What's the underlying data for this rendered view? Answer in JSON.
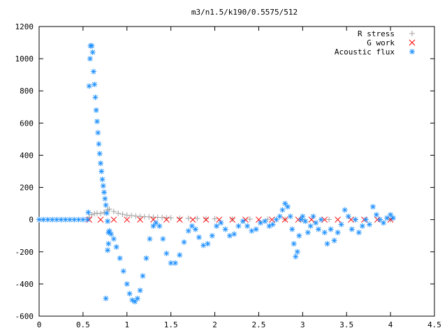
{
  "chart_data": {
    "type": "scatter",
    "title": "m3/n1.5/k190/0.5575/512",
    "xlabel": "",
    "ylabel": "",
    "xlim": [
      0,
      4.5
    ],
    "ylim": [
      -600,
      1200
    ],
    "xticks": [
      0,
      0.5,
      1,
      1.5,
      2,
      2.5,
      3,
      3.5,
      4,
      4.5
    ],
    "xtick_labels": [
      "0",
      "0.5",
      "1",
      "1.5",
      "2",
      "2.5",
      "3",
      "3.5",
      "4",
      "4.5"
    ],
    "yticks": [
      -600,
      -400,
      -200,
      0,
      200,
      400,
      600,
      800,
      1000,
      1200
    ],
    "ytick_labels": [
      "-600",
      "-400",
      "-200",
      "0",
      "200",
      "400",
      "600",
      "800",
      "1000",
      "1200"
    ],
    "grid": false,
    "legend_position": "top-right",
    "series": [
      {
        "name": "R stress",
        "marker": "plus",
        "color": "#a0a0a0",
        "points": [
          [
            0.57,
            15
          ],
          [
            0.6,
            30
          ],
          [
            0.63,
            38
          ],
          [
            0.66,
            40
          ],
          [
            0.7,
            38
          ],
          [
            0.74,
            45
          ],
          [
            0.78,
            60
          ],
          [
            0.8,
            65
          ],
          [
            0.85,
            50
          ],
          [
            0.9,
            40
          ],
          [
            0.95,
            33
          ],
          [
            1.0,
            28
          ],
          [
            1.05,
            25
          ],
          [
            1.1,
            22
          ],
          [
            1.15,
            20
          ],
          [
            1.2,
            18
          ],
          [
            1.25,
            17
          ],
          [
            1.3,
            15
          ],
          [
            1.35,
            14
          ],
          [
            1.4,
            13
          ],
          [
            1.45,
            12
          ],
          [
            1.5,
            11
          ],
          [
            1.6,
            9
          ],
          [
            1.7,
            8
          ],
          [
            1.8,
            7
          ],
          [
            1.9,
            6
          ],
          [
            2.0,
            5
          ],
          [
            2.2,
            4
          ],
          [
            2.4,
            3
          ],
          [
            2.6,
            2
          ],
          [
            2.8,
            2
          ],
          [
            3.0,
            1
          ],
          [
            3.3,
            1
          ],
          [
            3.6,
            1
          ],
          [
            4.0,
            0
          ]
        ]
      },
      {
        "name": "G work",
        "marker": "cross",
        "color": "#ff0000",
        "points": [
          [
            0.57,
            0
          ],
          [
            0.7,
            0
          ],
          [
            0.85,
            0
          ],
          [
            1.0,
            0
          ],
          [
            1.15,
            0
          ],
          [
            1.3,
            0
          ],
          [
            1.45,
            0
          ],
          [
            1.6,
            0
          ],
          [
            1.75,
            0
          ],
          [
            1.9,
            0
          ],
          [
            2.05,
            0
          ],
          [
            2.2,
            0
          ],
          [
            2.35,
            0
          ],
          [
            2.5,
            0
          ],
          [
            2.65,
            0
          ],
          [
            2.8,
            0
          ],
          [
            2.95,
            0
          ],
          [
            3.1,
            0
          ],
          [
            3.25,
            0
          ],
          [
            3.4,
            0
          ],
          [
            3.55,
            0
          ],
          [
            3.7,
            0
          ],
          [
            3.85,
            0
          ],
          [
            4.0,
            0
          ]
        ]
      },
      {
        "name": "Acoustic flux",
        "marker": "star",
        "color": "#1e90ff",
        "points": [
          [
            0.0,
            0
          ],
          [
            0.05,
            0
          ],
          [
            0.1,
            0
          ],
          [
            0.15,
            0
          ],
          [
            0.2,
            0
          ],
          [
            0.25,
            0
          ],
          [
            0.3,
            0
          ],
          [
            0.35,
            0
          ],
          [
            0.4,
            0
          ],
          [
            0.45,
            0
          ],
          [
            0.5,
            0
          ],
          [
            0.55,
            0
          ],
          [
            0.56,
            45
          ],
          [
            0.57,
            830
          ],
          [
            0.58,
            1000
          ],
          [
            0.585,
            1080
          ],
          [
            0.6,
            1080
          ],
          [
            0.61,
            1040
          ],
          [
            0.62,
            920
          ],
          [
            0.63,
            840
          ],
          [
            0.64,
            760
          ],
          [
            0.65,
            680
          ],
          [
            0.66,
            610
          ],
          [
            0.67,
            540
          ],
          [
            0.68,
            470
          ],
          [
            0.69,
            410
          ],
          [
            0.7,
            350
          ],
          [
            0.71,
            300
          ],
          [
            0.72,
            250
          ],
          [
            0.73,
            210
          ],
          [
            0.74,
            170
          ],
          [
            0.75,
            130
          ],
          [
            0.76,
            90
          ],
          [
            0.77,
            40
          ],
          [
            0.78,
            -10
          ],
          [
            0.79,
            -80
          ],
          [
            0.8,
            -70
          ],
          [
            0.78,
            -190
          ],
          [
            0.79,
            -150
          ],
          [
            0.76,
            -490
          ],
          [
            0.82,
            -90
          ],
          [
            0.85,
            -120
          ],
          [
            0.88,
            -170
          ],
          [
            0.92,
            -240
          ],
          [
            0.96,
            -320
          ],
          [
            1.0,
            -400
          ],
          [
            1.03,
            -460
          ],
          [
            1.06,
            -500
          ],
          [
            1.09,
            -510
          ],
          [
            1.12,
            -490
          ],
          [
            1.15,
            -440
          ],
          [
            1.18,
            -350
          ],
          [
            1.22,
            -240
          ],
          [
            1.26,
            -120
          ],
          [
            1.3,
            -40
          ],
          [
            1.33,
            -20
          ],
          [
            1.37,
            -40
          ],
          [
            1.41,
            -120
          ],
          [
            1.45,
            -210
          ],
          [
            1.5,
            -270
          ],
          [
            1.55,
            -270
          ],
          [
            1.6,
            -220
          ],
          [
            1.65,
            -140
          ],
          [
            1.7,
            -70
          ],
          [
            1.74,
            -40
          ],
          [
            1.78,
            -60
          ],
          [
            1.82,
            -110
          ],
          [
            1.87,
            -160
          ],
          [
            1.92,
            -150
          ],
          [
            1.97,
            -100
          ],
          [
            2.02,
            -40
          ],
          [
            2.07,
            -20
          ],
          [
            2.12,
            -60
          ],
          [
            2.17,
            -100
          ],
          [
            2.22,
            -90
          ],
          [
            2.27,
            -40
          ],
          [
            2.32,
            -10
          ],
          [
            2.37,
            -40
          ],
          [
            2.42,
            -70
          ],
          [
            2.47,
            -60
          ],
          [
            2.52,
            -20
          ],
          [
            2.57,
            -10
          ],
          [
            2.62,
            -40
          ],
          [
            2.66,
            -30
          ],
          [
            2.7,
            0
          ],
          [
            2.74,
            20
          ],
          [
            2.77,
            60
          ],
          [
            2.8,
            100
          ],
          [
            2.83,
            80
          ],
          [
            2.86,
            20
          ],
          [
            2.88,
            -60
          ],
          [
            2.9,
            -150
          ],
          [
            2.92,
            -230
          ],
          [
            2.94,
            -200
          ],
          [
            2.96,
            -100
          ],
          [
            2.98,
            0
          ],
          [
            3.0,
            20
          ],
          [
            3.03,
            -10
          ],
          [
            3.06,
            -80
          ],
          [
            3.09,
            -40
          ],
          [
            3.12,
            20
          ],
          [
            3.15,
            -20
          ],
          [
            3.18,
            -60
          ],
          [
            3.21,
            0
          ],
          [
            3.25,
            -80
          ],
          [
            3.28,
            -150
          ],
          [
            3.32,
            -60
          ],
          [
            3.36,
            -130
          ],
          [
            3.4,
            -80
          ],
          [
            3.44,
            -30
          ],
          [
            3.48,
            60
          ],
          [
            3.52,
            20
          ],
          [
            3.56,
            -60
          ],
          [
            3.6,
            0
          ],
          [
            3.64,
            -80
          ],
          [
            3.68,
            -40
          ],
          [
            3.72,
            0
          ],
          [
            3.76,
            -30
          ],
          [
            3.8,
            80
          ],
          [
            3.84,
            30
          ],
          [
            3.88,
            0
          ],
          [
            3.92,
            -20
          ],
          [
            3.96,
            10
          ],
          [
            4.0,
            30
          ],
          [
            4.03,
            10
          ]
        ]
      }
    ]
  }
}
